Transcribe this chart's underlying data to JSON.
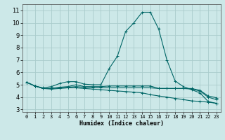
{
  "title": "",
  "xlabel": "Humidex (Indice chaleur)",
  "ylabel": "",
  "bg_color": "#cce8e8",
  "grid_color": "#aacccc",
  "line_color": "#006666",
  "xlim": [
    -0.5,
    23.5
  ],
  "ylim": [
    2.8,
    11.5
  ],
  "yticks": [
    3,
    4,
    5,
    6,
    7,
    8,
    9,
    10,
    11
  ],
  "xticks": [
    0,
    1,
    2,
    3,
    4,
    5,
    6,
    7,
    8,
    9,
    10,
    11,
    12,
    13,
    14,
    15,
    16,
    17,
    18,
    19,
    20,
    21,
    22,
    23
  ],
  "series": [
    {
      "x": [
        0,
        1,
        2,
        3,
        4,
        5,
        6,
        7,
        8,
        9,
        10,
        11,
        12,
        13,
        14,
        15,
        16,
        17,
        18,
        19,
        20,
        21,
        22,
        23
      ],
      "y": [
        5.2,
        4.9,
        4.75,
        4.85,
        5.1,
        5.25,
        5.25,
        5.05,
        5.0,
        5.0,
        6.3,
        7.3,
        9.3,
        10.0,
        10.85,
        10.85,
        9.5,
        7.0,
        5.3,
        4.85,
        4.6,
        4.35,
        3.65,
        3.5
      ]
    },
    {
      "x": [
        0,
        1,
        2,
        3,
        4,
        5,
        6,
        7,
        8,
        9,
        10,
        11,
        12,
        13,
        14,
        15,
        16,
        17,
        18,
        19,
        20,
        21,
        22,
        23
      ],
      "y": [
        5.2,
        4.9,
        4.7,
        4.7,
        4.8,
        4.85,
        5.0,
        4.85,
        4.85,
        4.85,
        4.9,
        4.9,
        4.9,
        4.9,
        4.9,
        4.9,
        4.7,
        4.7,
        4.7,
        4.7,
        4.7,
        4.55,
        4.1,
        3.95
      ]
    },
    {
      "x": [
        0,
        1,
        2,
        3,
        4,
        5,
        6,
        7,
        8,
        9,
        10,
        11,
        12,
        13,
        14,
        15,
        16,
        17,
        18,
        19,
        20,
        21,
        22,
        23
      ],
      "y": [
        5.2,
        4.9,
        4.7,
        4.65,
        4.7,
        4.75,
        4.75,
        4.7,
        4.65,
        4.6,
        4.55,
        4.5,
        4.45,
        4.4,
        4.35,
        4.2,
        4.1,
        4.0,
        3.9,
        3.8,
        3.7,
        3.65,
        3.6,
        3.5
      ]
    },
    {
      "x": [
        0,
        1,
        2,
        3,
        4,
        5,
        6,
        7,
        8,
        9,
        10,
        11,
        12,
        13,
        14,
        15,
        16,
        17,
        18,
        19,
        20,
        21,
        22,
        23
      ],
      "y": [
        5.2,
        4.9,
        4.7,
        4.7,
        4.75,
        4.8,
        4.85,
        4.8,
        4.75,
        4.75,
        4.75,
        4.75,
        4.75,
        4.75,
        4.75,
        4.75,
        4.7,
        4.7,
        4.7,
        4.7,
        4.65,
        4.5,
        4.0,
        3.8
      ]
    }
  ]
}
